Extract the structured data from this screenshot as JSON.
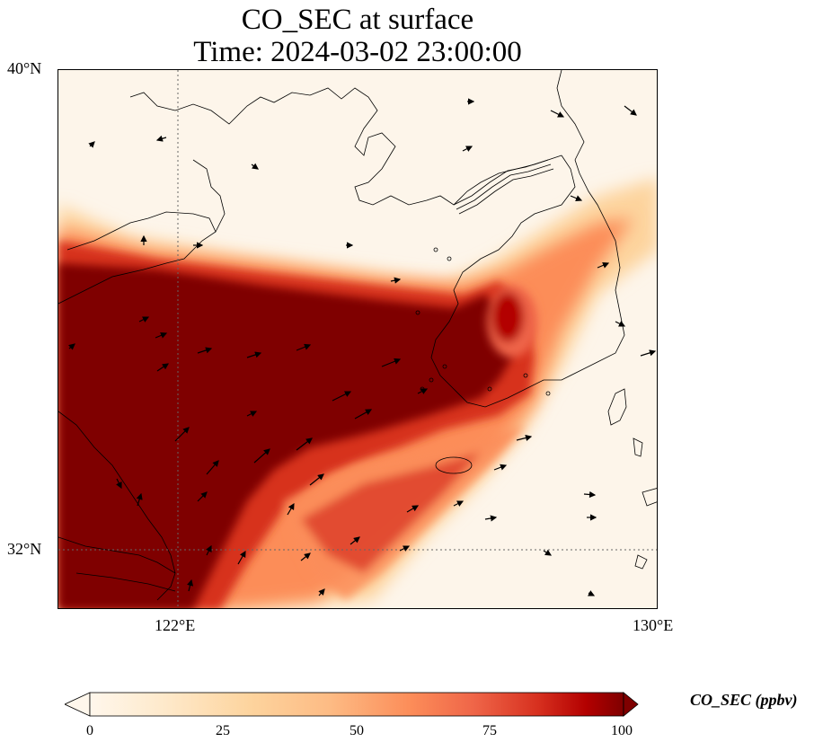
{
  "title": {
    "line1": "CO_SEC at surface",
    "line2": "Time: 2024-03-02 23:00:00"
  },
  "axes": {
    "lat_ticks": [
      {
        "value": 40,
        "label": "40°N"
      },
      {
        "value": 32,
        "label": "32°N"
      }
    ],
    "lon_ticks": [
      {
        "value": 122,
        "label": "122°E"
      },
      {
        "value": 130,
        "label": "130°E"
      }
    ],
    "extent": {
      "lon_min": 120,
      "lon_max": 130,
      "lat_min": 31,
      "lat_max": 40
    },
    "gridlines": "dotted at 122°E and 32°N"
  },
  "colorbar": {
    "label": "CO_SEC (ppbv)",
    "ticks": [
      "0",
      "25",
      "50",
      "75",
      "100"
    ],
    "range": [
      0,
      100
    ],
    "colormap": "OrRd",
    "extend": "both"
  },
  "chart_data": {
    "type": "heatmap",
    "variable": "CO_SEC",
    "level": "surface",
    "units": "ppbv",
    "valid_time": "2024-03-02 23:00:00",
    "description_of_field": "high concentrations (>=100 ppbv) over eastern China coast, Yellow Sea and western Korea; moderate plume extending southeast toward Korean south coast; low values north over Bohai/Liaodong and south-east open sea",
    "overlay": "surface wind vectors (quiver)"
  }
}
